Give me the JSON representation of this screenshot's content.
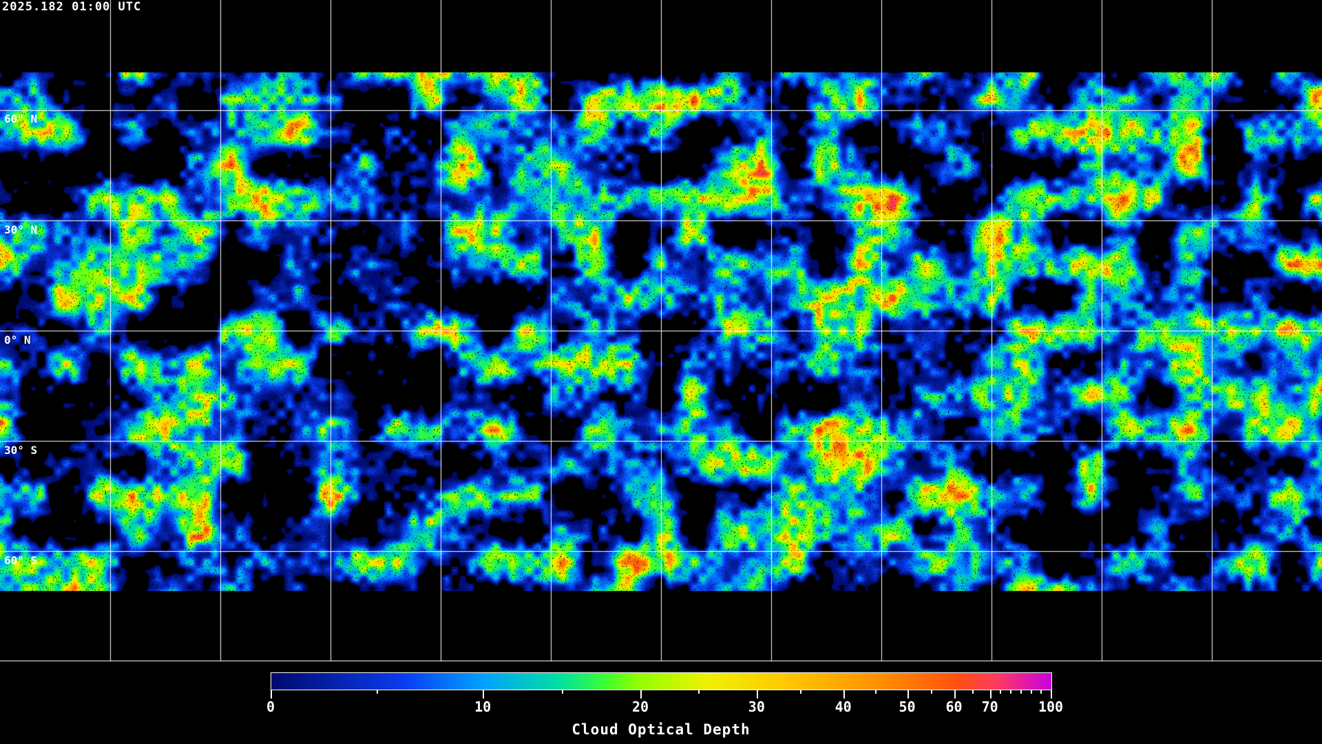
{
  "header": {
    "timestamp": "2025.182 01:00 UTC"
  },
  "map": {
    "background": "#000000",
    "grid_color": "#ffffff",
    "coastline_color": "#ffffff",
    "latitude_labels": [
      "60° N",
      "30° N",
      "0° N",
      "30° S",
      "60° S"
    ]
  },
  "colorbar": {
    "title": "Cloud Optical Depth",
    "labeled_ticks": [
      "0",
      "10",
      "20",
      "30",
      "40",
      "50",
      "60",
      "70",
      "100"
    ],
    "range": [
      0,
      100
    ],
    "colors": [
      "#000a6e",
      "#0a3cf0",
      "#00a0ff",
      "#00e0a0",
      "#40ff30",
      "#90ff00",
      "#f0f000",
      "#ffc800",
      "#ff9000",
      "#ff5010",
      "#ff3a60",
      "#c800e0"
    ]
  }
}
